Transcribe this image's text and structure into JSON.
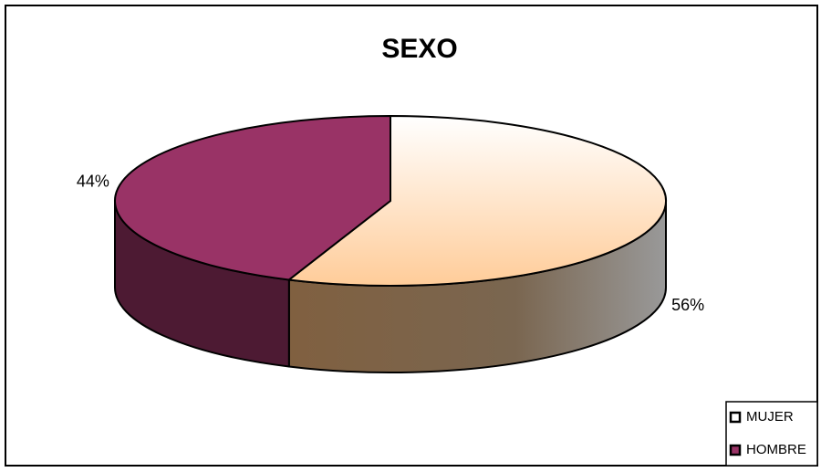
{
  "chart_data": {
    "type": "pie",
    "title": "SEXO",
    "categories": [
      "MUJER",
      "HOMBRE"
    ],
    "values": [
      56,
      44
    ],
    "value_labels": [
      "56%",
      "44%"
    ],
    "colors": [
      "#ffcc99",
      "#993366"
    ],
    "legend": "bottom-right"
  }
}
